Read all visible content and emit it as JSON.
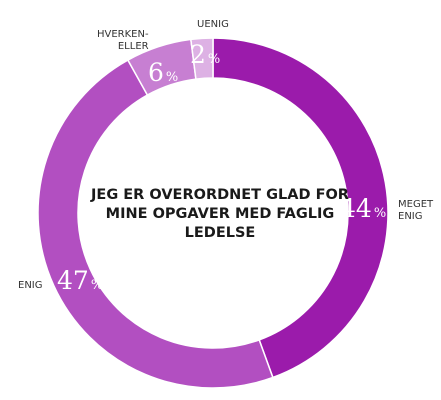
{
  "chart_data": {
    "type": "pie",
    "title_lines": [
      "JEG ER OVERORDNET GLAD FOR",
      "MINE OPGAVER MED FAGLIG",
      "LEDELSE"
    ],
    "categories": [
      "MEGET ENIG",
      "ENIG",
      "HVERKEN-ELLER",
      "UENIG"
    ],
    "values": [
      44,
      47,
      6,
      2
    ],
    "value_suffix": "%",
    "colors": [
      "#9b1bab",
      "#b24fc1",
      "#c77fd2",
      "#ddb1e4"
    ]
  },
  "labels": {
    "meget_enig": [
      "MEGET",
      "ENIG"
    ],
    "enig": [
      "ENIG"
    ],
    "hverken_eller": [
      "HVERKEN-",
      "ELLER"
    ],
    "uenig": [
      "UENIG"
    ]
  },
  "pct": {
    "meget_enig": "44",
    "enig": "47",
    "hverken_eller": "6",
    "uenig": "2",
    "sign": "%"
  }
}
